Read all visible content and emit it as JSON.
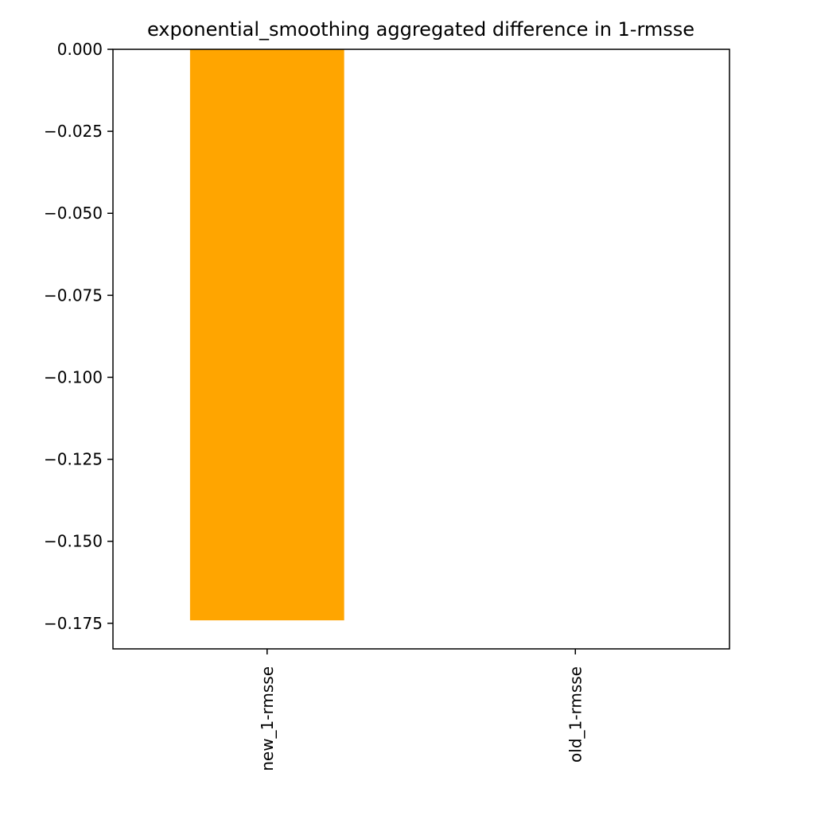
{
  "chart_data": {
    "type": "bar",
    "title": "exponential_smoothing aggregated difference in 1-rmsse",
    "xlabel": "",
    "ylabel": "",
    "categories": [
      "new_1-rmsse",
      "old_1-rmsse"
    ],
    "values": [
      -0.1741,
      0.0
    ],
    "bar_color": "#FFA500",
    "ylim": [
      -0.1828,
      0.0
    ],
    "yticks": [
      0.0,
      -0.025,
      -0.05,
      -0.075,
      -0.1,
      -0.125,
      -0.15,
      -0.175
    ],
    "ytick_labels": [
      "0.000",
      "−0.025",
      "−0.050",
      "−0.075",
      "−0.100",
      "−0.125",
      "−0.150",
      "−0.175"
    ],
    "xtick_rotation": "vertical",
    "grid": false,
    "legend": "none"
  }
}
